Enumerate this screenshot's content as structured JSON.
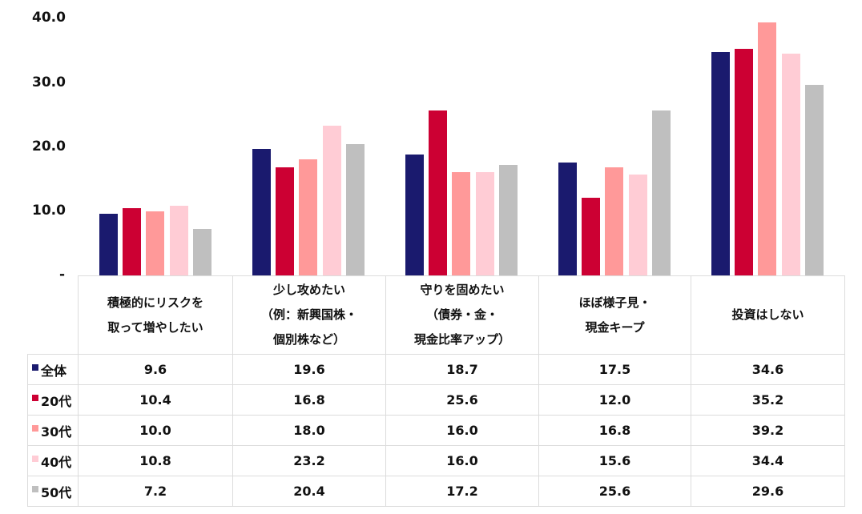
{
  "chart_data": {
    "type": "bar",
    "title": "",
    "xlabel": "",
    "ylabel": "",
    "ylim": [
      0,
      40
    ],
    "yticks": [
      "-",
      "10.0",
      "20.0",
      "30.0",
      "40.0"
    ],
    "grid": false,
    "legend_position": "table-left",
    "categories": [
      "積極的にリスクを取って増やしたい",
      "少し攻めたい（例：新興国株・個別株など）",
      "守りを固めたい（債券・金・現金比率アップ）",
      "ほぼ様子見・現金キープ",
      "投資はしない"
    ],
    "series": [
      {
        "name": "全体",
        "color": "#1a1a6e",
        "values": [
          9.6,
          19.6,
          18.7,
          17.5,
          34.6
        ]
      },
      {
        "name": "20代",
        "color": "#cc0033",
        "values": [
          10.4,
          16.8,
          25.6,
          12.0,
          35.2
        ]
      },
      {
        "name": "30代",
        "color": "#ff9999",
        "values": [
          10.0,
          18.0,
          16.0,
          16.8,
          39.2
        ]
      },
      {
        "name": "40代",
        "color": "#ffccd5",
        "values": [
          10.8,
          23.2,
          16.0,
          15.6,
          34.4
        ]
      },
      {
        "name": "50代",
        "color": "#bfbfbf",
        "values": [
          7.2,
          20.4,
          17.2,
          25.6,
          29.6
        ]
      }
    ]
  },
  "axis": {
    "y_labels": [
      "40.0",
      "30.0",
      "20.0",
      "10.0",
      "-"
    ]
  },
  "table": {
    "headers": [
      [
        "積極的にリスクを",
        "取って増やしたい"
      ],
      [
        "少し攻めたい",
        "（例：新興国株・",
        "個別株など）"
      ],
      [
        "守りを固めたい",
        "（債券・金・",
        "現金比率アップ）"
      ],
      [
        "ほぼ様子見・",
        "現金キープ"
      ],
      [
        "投資はしない"
      ]
    ],
    "rows": [
      {
        "label": "全体",
        "color": "#1a1a6e",
        "values": [
          "9.6",
          "19.6",
          "18.7",
          "17.5",
          "34.6"
        ]
      },
      {
        "label": "20代",
        "color": "#cc0033",
        "values": [
          "10.4",
          "16.8",
          "25.6",
          "12.0",
          "35.2"
        ]
      },
      {
        "label": "30代",
        "color": "#ff9999",
        "values": [
          "10.0",
          "18.0",
          "16.0",
          "16.8",
          "39.2"
        ]
      },
      {
        "label": "40代",
        "color": "#ffccd5",
        "values": [
          "10.8",
          "23.2",
          "16.0",
          "15.6",
          "34.4"
        ]
      },
      {
        "label": "50代",
        "color": "#bfbfbf",
        "values": [
          "7.2",
          "20.4",
          "17.2",
          "25.6",
          "29.6"
        ]
      }
    ]
  }
}
